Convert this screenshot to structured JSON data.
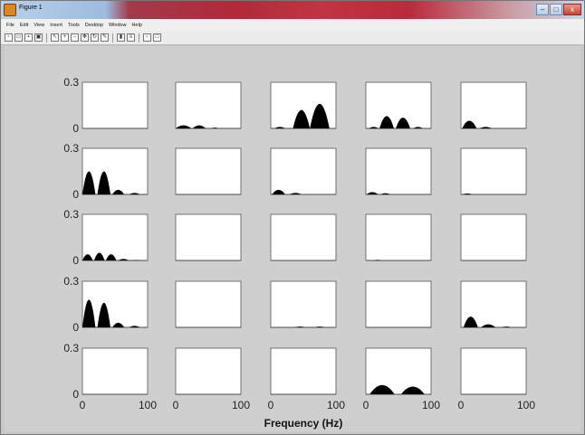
{
  "window": {
    "title": "Figure 1"
  },
  "title_controls": {
    "minimize": "–",
    "maximize": "□",
    "close": "x"
  },
  "menu": [
    "File",
    "Edit",
    "View",
    "Insert",
    "Tools",
    "Desktop",
    "Window",
    "Help"
  ],
  "toolbar": [
    {
      "icon": "new-figure-icon"
    },
    {
      "icon": "open-icon"
    },
    {
      "icon": "save-icon"
    },
    {
      "icon": "print-icon"
    },
    {
      "icon": "arrow-icon"
    },
    {
      "icon": "zoom-in-icon"
    },
    {
      "icon": "zoom-out-icon"
    },
    {
      "icon": "pan-icon"
    },
    {
      "icon": "rotate-icon"
    },
    {
      "icon": "data-cursor-icon"
    },
    {
      "icon": "colorbar-icon"
    },
    {
      "icon": "legend-icon"
    },
    {
      "icon": "hide-tools-icon"
    },
    {
      "icon": "show-tools-icon"
    }
  ],
  "chart_data": {
    "type": "area",
    "grid": "5x5 subplots",
    "ylim": [
      0,
      0.3
    ],
    "xlim": [
      0,
      100
    ],
    "yticks": [
      "0",
      "0.3"
    ],
    "xticks": [
      "0",
      "100"
    ],
    "xlabel": "Frequency (Hz)",
    "fill_color": "#000000",
    "panels": [
      {
        "row": 0,
        "col": 0,
        "lobes": []
      },
      {
        "row": 0,
        "col": 1,
        "lobes": [
          [
            12,
            12,
            0.02
          ],
          [
            36,
            10,
            0.02
          ],
          [
            60,
            6,
            0.005
          ]
        ]
      },
      {
        "row": 0,
        "col": 2,
        "lobes": [
          [
            14,
            8,
            0.01
          ],
          [
            47,
            13,
            0.12
          ],
          [
            75,
            15,
            0.16
          ]
        ]
      },
      {
        "row": 0,
        "col": 3,
        "lobes": [
          [
            12,
            7,
            0.01
          ],
          [
            32,
            11,
            0.08
          ],
          [
            57,
            11,
            0.07
          ],
          [
            80,
            7,
            0.01
          ]
        ]
      },
      {
        "row": 0,
        "col": 4,
        "lobes": [
          [
            13,
            11,
            0.05
          ],
          [
            38,
            9,
            0.01
          ]
        ]
      },
      {
        "row": 1,
        "col": 0,
        "lobes": [
          [
            10,
            10,
            0.15
          ],
          [
            33,
            10,
            0.15
          ],
          [
            55,
            9,
            0.03
          ],
          [
            80,
            8,
            0.01
          ]
        ]
      },
      {
        "row": 1,
        "col": 1,
        "lobes": []
      },
      {
        "row": 1,
        "col": 2,
        "lobes": [
          [
            12,
            10,
            0.03
          ],
          [
            38,
            9,
            0.01
          ]
        ]
      },
      {
        "row": 1,
        "col": 3,
        "lobes": [
          [
            10,
            9,
            0.015
          ],
          [
            30,
            7,
            0.008
          ]
        ]
      },
      {
        "row": 1,
        "col": 4,
        "lobes": [
          [
            10,
            8,
            0.006
          ]
        ]
      },
      {
        "row": 2,
        "col": 0,
        "lobes": [
          [
            8,
            8,
            0.04
          ],
          [
            26,
            8,
            0.05
          ],
          [
            44,
            8,
            0.04
          ],
          [
            63,
            8,
            0.01
          ],
          [
            82,
            7,
            0.003
          ]
        ]
      },
      {
        "row": 2,
        "col": 1,
        "lobes": []
      },
      {
        "row": 2,
        "col": 2,
        "lobes": []
      },
      {
        "row": 2,
        "col": 3,
        "lobes": [
          [
            18,
            5,
            0.004
          ]
        ]
      },
      {
        "row": 2,
        "col": 4,
        "lobes": []
      },
      {
        "row": 3,
        "col": 0,
        "lobes": [
          [
            10,
            10,
            0.18
          ],
          [
            33,
            10,
            0.16
          ],
          [
            55,
            9,
            0.03
          ],
          [
            80,
            8,
            0.01
          ]
        ]
      },
      {
        "row": 3,
        "col": 1,
        "lobes": []
      },
      {
        "row": 3,
        "col": 2,
        "lobes": [
          [
            45,
            9,
            0.005
          ],
          [
            75,
            8,
            0.005
          ]
        ]
      },
      {
        "row": 3,
        "col": 4,
        "lobes": [
          [
            15,
            11,
            0.07
          ],
          [
            42,
            11,
            0.02
          ],
          [
            70,
            8,
            0.005
          ]
        ]
      },
      {
        "row": 3,
        "col": 3,
        "lobes": []
      },
      {
        "row": 4,
        "col": 0,
        "lobes": []
      },
      {
        "row": 4,
        "col": 1,
        "lobes": []
      },
      {
        "row": 4,
        "col": 2,
        "lobes": []
      },
      {
        "row": 4,
        "col": 3,
        "lobes": [
          [
            25,
            19,
            0.06
          ],
          [
            72,
            18,
            0.05
          ]
        ]
      },
      {
        "row": 4,
        "col": 4,
        "lobes": []
      }
    ]
  }
}
